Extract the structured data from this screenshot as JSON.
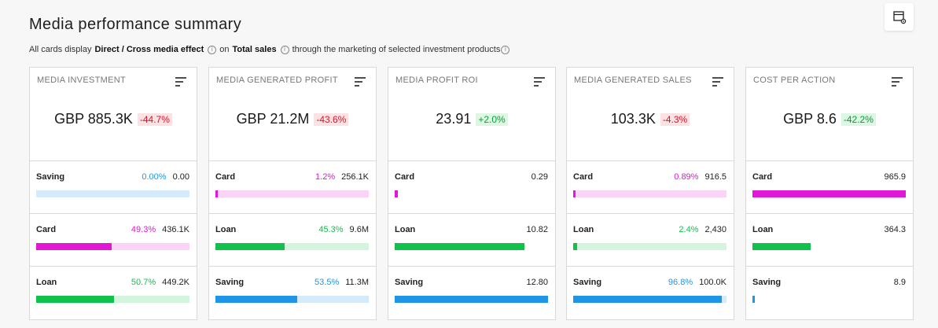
{
  "page": {
    "title": "Media performance summary",
    "subtitle_prefix": "All cards display",
    "effect_label": "Direct / Cross media effect",
    "on_label": "on",
    "metric_label": "Total sales",
    "subtitle_suffix": "through the marketing of selected investment products"
  },
  "colors": {
    "saving": "#1f95e8",
    "saving_track": "#d5eafb",
    "card": "#e118d6",
    "card_track": "#fbd3f7",
    "loan": "#10c24c",
    "loan_track": "#d3f5dd"
  },
  "cards": [
    {
      "title": "MEDIA INVESTMENT",
      "value": "GBP 885.3K",
      "change": "-44.7%",
      "change_dir": "neg",
      "rows": [
        {
          "label": "Saving",
          "pct": "0.00%",
          "val": "0.00",
          "product": "saving",
          "fill": 0,
          "track": true
        },
        {
          "label": "Card",
          "pct": "49.3%",
          "val": "436.1K",
          "product": "card",
          "fill": 0.493,
          "track": true
        },
        {
          "label": "Loan",
          "pct": "50.7%",
          "val": "449.2K",
          "product": "loan",
          "fill": 0.507,
          "track": true
        }
      ]
    },
    {
      "title": "MEDIA GENERATED PROFIT",
      "value": "GBP 21.2M",
      "change": "-43.6%",
      "change_dir": "neg",
      "rows": [
        {
          "label": "Card",
          "pct": "1.2%",
          "val": "256.1K",
          "product": "card",
          "fill": 0.012,
          "track": true
        },
        {
          "label": "Loan",
          "pct": "45.3%",
          "val": "9.6M",
          "product": "loan",
          "fill": 0.453,
          "track": true
        },
        {
          "label": "Saving",
          "pct": "53.5%",
          "val": "11.3M",
          "product": "saving",
          "fill": 0.535,
          "track": true
        }
      ]
    },
    {
      "title": "MEDIA PROFIT ROI",
      "value": "23.91",
      "change": "+2.0%",
      "change_dir": "pos",
      "rows": [
        {
          "label": "Card",
          "pct": "",
          "val": "0.29",
          "product": "card",
          "fill": 0.023,
          "track": false
        },
        {
          "label": "Loan",
          "pct": "",
          "val": "10.82",
          "product": "loan",
          "fill": 0.845,
          "track": false
        },
        {
          "label": "Saving",
          "pct": "",
          "val": "12.80",
          "product": "saving",
          "fill": 1.0,
          "track": false
        }
      ]
    },
    {
      "title": "MEDIA GENERATED SALES",
      "value": "103.3K",
      "change": "-4.3%",
      "change_dir": "neg",
      "rows": [
        {
          "label": "Card",
          "pct": "0.89%",
          "val": "916.5",
          "product": "card",
          "fill": 0.0089,
          "track": true
        },
        {
          "label": "Loan",
          "pct": "2.4%",
          "val": "2,430",
          "product": "loan",
          "fill": 0.024,
          "track": true
        },
        {
          "label": "Saving",
          "pct": "96.8%",
          "val": "100.0K",
          "product": "saving",
          "fill": 0.968,
          "track": true
        }
      ]
    },
    {
      "title": "COST PER ACTION",
      "value": "GBP 8.6",
      "change": "-42.2%",
      "change_dir": "pos",
      "rows": [
        {
          "label": "Card",
          "pct": "",
          "val": "965.9",
          "product": "card",
          "fill": 1.0,
          "track": false
        },
        {
          "label": "Loan",
          "pct": "",
          "val": "364.3",
          "product": "loan",
          "fill": 0.377,
          "track": false
        },
        {
          "label": "Saving",
          "pct": "",
          "val": "8.9",
          "product": "saving",
          "fill": 0.0092,
          "track": false
        }
      ]
    }
  ]
}
